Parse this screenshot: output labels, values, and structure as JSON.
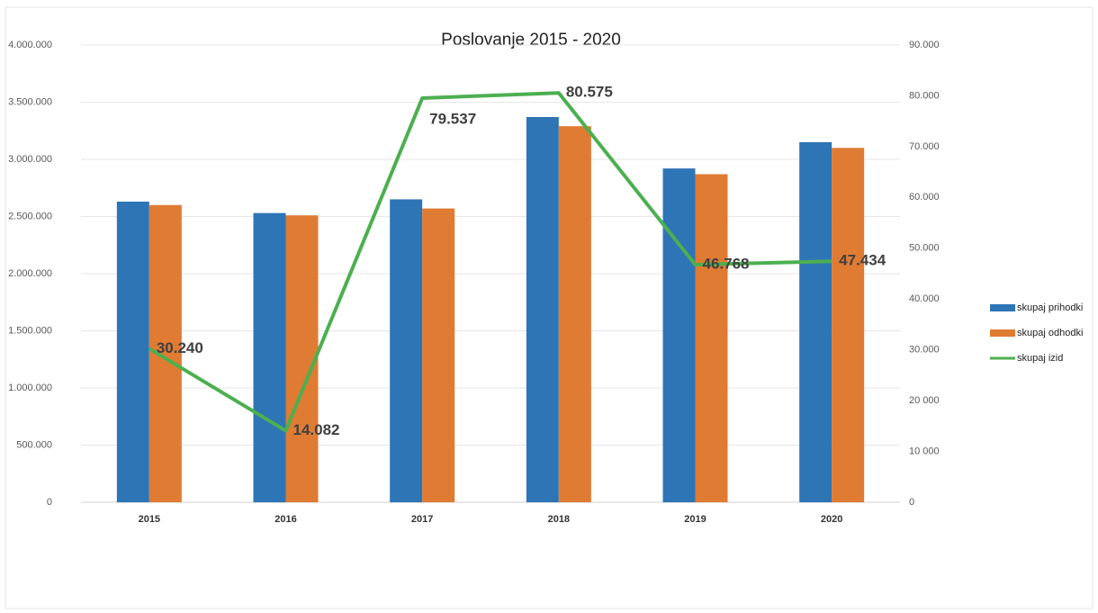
{
  "chart_data": {
    "type": "bar-line",
    "title": "Poslovanje 2015 - 2020",
    "categories": [
      "2015",
      "2016",
      "2017",
      "2018",
      "2019",
      "2020"
    ],
    "series": [
      {
        "name": "skupaj prihodki",
        "color": "#2e75b6",
        "type": "bar",
        "values": [
          2630000,
          2530000,
          2650000,
          3370000,
          2920000,
          3150000
        ]
      },
      {
        "name": "skupaj odhodki",
        "color": "#e07b33",
        "type": "bar",
        "values": [
          2600000,
          2510000,
          2570000,
          3290000,
          2870000,
          3100000
        ]
      },
      {
        "name": "skupaj izid",
        "color": "#4caf50",
        "type": "line",
        "axis": "y2",
        "values": [
          30240,
          14082,
          79537,
          80575,
          46768,
          47434
        ],
        "value_labels": [
          "30.240",
          "14.082",
          "79.537",
          "80.575",
          "46.768",
          "47.434"
        ]
      }
    ],
    "ylim": [
      0,
      4000000
    ],
    "yticks": [
      0,
      {
        "value": 500000,
        "label": "500.000"
      },
      {
        "value": 1000000,
        "label": "1.000.000"
      },
      {
        "value": 1500000,
        "label": "1.500.000"
      },
      {
        "value": 2000000,
        "label": "2.000.000"
      },
      {
        "value": 2500000,
        "label": "2.500.000"
      },
      {
        "value": 3000000,
        "label": "3.000.000"
      },
      {
        "value": 3500000,
        "label": "3.500.000"
      },
      {
        "value": 4000000,
        "label": "4.000.000"
      }
    ],
    "y2lim": [
      0,
      90000
    ],
    "y2ticks": [
      0,
      {
        "value": 10000,
        "label": "10 000"
      },
      {
        "value": 20000,
        "label": "20 000"
      },
      {
        "value": 30000,
        "label": "30.000"
      },
      {
        "value": 40000,
        "label": "40.000"
      },
      {
        "value": 50000,
        "label": "50.000"
      },
      {
        "value": 60000,
        "label": "60.000"
      },
      {
        "value": 70000,
        "label": "70.000"
      },
      {
        "value": 80000,
        "label": "80.000"
      },
      {
        "value": 90000,
        "label": "90.000"
      }
    ],
    "grid": true,
    "legend": "right"
  }
}
